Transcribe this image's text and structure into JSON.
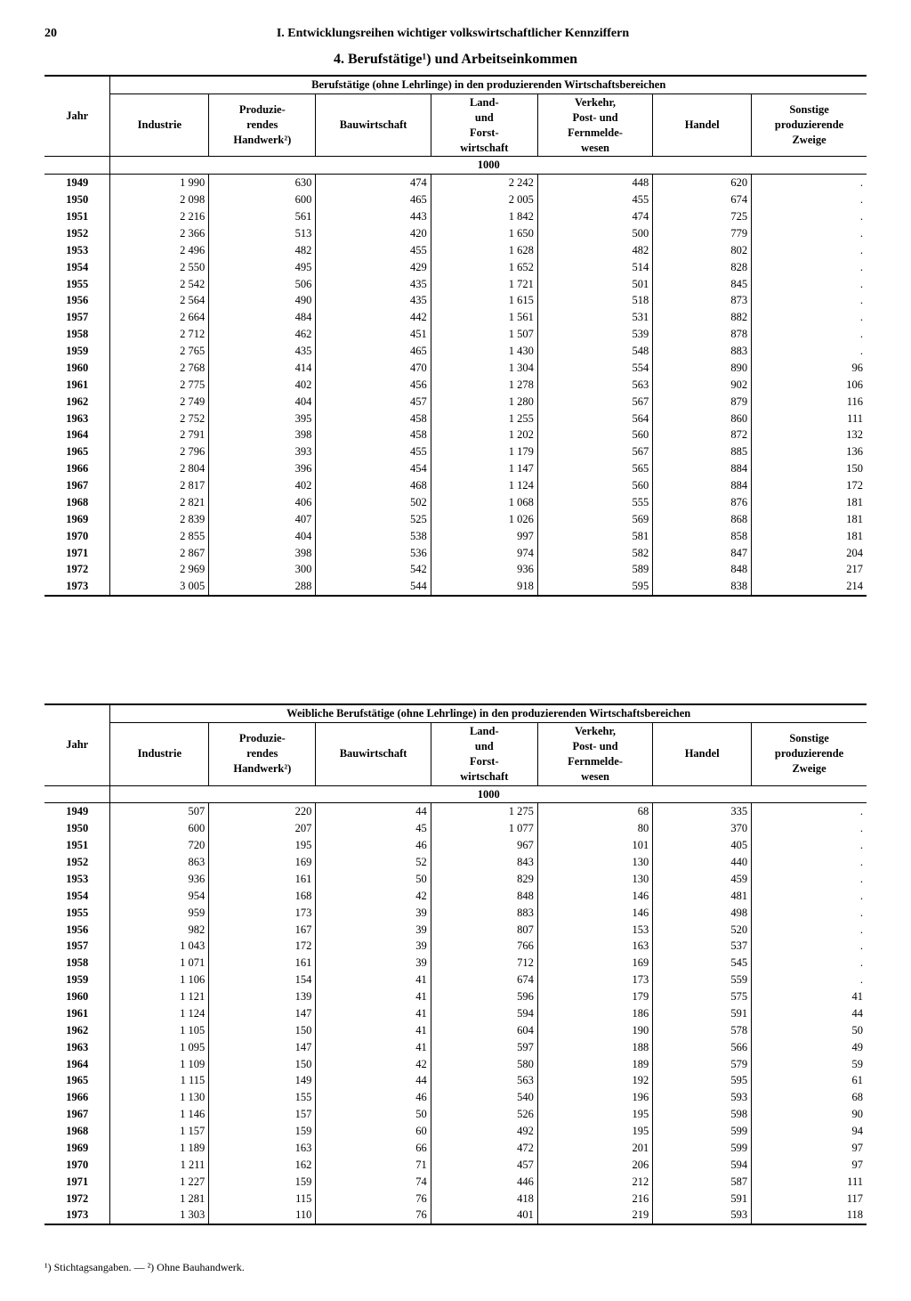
{
  "page_number": "20",
  "chapter_title": "I. Entwicklungsreihen wichtiger volkswirtschaftlicher Kennziffern",
  "section_title": "4. Berufstätige¹) und Arbeitseinkommen",
  "columns": {
    "jahr": "Jahr",
    "industrie": "Industrie",
    "handwerk": "Produzie-\nrendes\nHandwerk²)",
    "bau": "Bauwirtschaft",
    "land": "Land-\nund\nForst-\nwirtschaft",
    "verkehr": "Verkehr,\nPost- und\nFernmelde-\nwesen",
    "handel": "Handel",
    "sonstige": "Sonstige\nproduzierende\nZweige"
  },
  "unit": "1000",
  "table1": {
    "spanning_header": "Berufstätige (ohne Lehrlinge) in den produzierenden Wirtschaftsbereichen",
    "rows": [
      [
        "1949",
        "1 990",
        "630",
        "474",
        "2 242",
        "448",
        "620",
        "."
      ],
      [
        "1950",
        "2 098",
        "600",
        "465",
        "2 005",
        "455",
        "674",
        "."
      ],
      [
        "1951",
        "2 216",
        "561",
        "443",
        "1 842",
        "474",
        "725",
        "."
      ],
      [
        "1952",
        "2 366",
        "513",
        "420",
        "1 650",
        "500",
        "779",
        "."
      ],
      [
        "1953",
        "2 496",
        "482",
        "455",
        "1 628",
        "482",
        "802",
        "."
      ],
      [
        "1954",
        "2 550",
        "495",
        "429",
        "1 652",
        "514",
        "828",
        "."
      ],
      [
        "1955",
        "2 542",
        "506",
        "435",
        "1 721",
        "501",
        "845",
        "."
      ],
      [
        "1956",
        "2 564",
        "490",
        "435",
        "1 615",
        "518",
        "873",
        "."
      ],
      [
        "1957",
        "2 664",
        "484",
        "442",
        "1 561",
        "531",
        "882",
        "."
      ],
      [
        "1958",
        "2 712",
        "462",
        "451",
        "1 507",
        "539",
        "878",
        "."
      ],
      [
        "1959",
        "2 765",
        "435",
        "465",
        "1 430",
        "548",
        "883",
        "."
      ],
      [
        "1960",
        "2 768",
        "414",
        "470",
        "1 304",
        "554",
        "890",
        "96"
      ],
      [
        "1961",
        "2 775",
        "402",
        "456",
        "1 278",
        "563",
        "902",
        "106"
      ],
      [
        "1962",
        "2 749",
        "404",
        "457",
        "1 280",
        "567",
        "879",
        "116"
      ],
      [
        "1963",
        "2 752",
        "395",
        "458",
        "1 255",
        "564",
        "860",
        "111"
      ],
      [
        "1964",
        "2 791",
        "398",
        "458",
        "1 202",
        "560",
        "872",
        "132"
      ],
      [
        "1965",
        "2 796",
        "393",
        "455",
        "1 179",
        "567",
        "885",
        "136"
      ],
      [
        "1966",
        "2 804",
        "396",
        "454",
        "1 147",
        "565",
        "884",
        "150"
      ],
      [
        "1967",
        "2 817",
        "402",
        "468",
        "1 124",
        "560",
        "884",
        "172"
      ],
      [
        "1968",
        "2 821",
        "406",
        "502",
        "1 068",
        "555",
        "876",
        "181"
      ],
      [
        "1969",
        "2 839",
        "407",
        "525",
        "1 026",
        "569",
        "868",
        "181"
      ],
      [
        "1970",
        "2 855",
        "404",
        "538",
        "997",
        "581",
        "858",
        "181"
      ],
      [
        "1971",
        "2 867",
        "398",
        "536",
        "974",
        "582",
        "847",
        "204"
      ],
      [
        "1972",
        "2 969",
        "300",
        "542",
        "936",
        "589",
        "848",
        "217"
      ],
      [
        "1973",
        "3 005",
        "288",
        "544",
        "918",
        "595",
        "838",
        "214"
      ]
    ]
  },
  "table2": {
    "spanning_header": "Weibliche Berufstätige (ohne Lehrlinge) in den produzierenden Wirtschaftsbereichen",
    "rows": [
      [
        "1949",
        "507",
        "220",
        "44",
        "1 275",
        "68",
        "335",
        "."
      ],
      [
        "1950",
        "600",
        "207",
        "45",
        "1 077",
        "80",
        "370",
        "."
      ],
      [
        "1951",
        "720",
        "195",
        "46",
        "967",
        "101",
        "405",
        "."
      ],
      [
        "1952",
        "863",
        "169",
        "52",
        "843",
        "130",
        "440",
        "."
      ],
      [
        "1953",
        "936",
        "161",
        "50",
        "829",
        "130",
        "459",
        "."
      ],
      [
        "1954",
        "954",
        "168",
        "42",
        "848",
        "146",
        "481",
        "."
      ],
      [
        "1955",
        "959",
        "173",
        "39",
        "883",
        "146",
        "498",
        "."
      ],
      [
        "1956",
        "982",
        "167",
        "39",
        "807",
        "153",
        "520",
        "."
      ],
      [
        "1957",
        "1 043",
        "172",
        "39",
        "766",
        "163",
        "537",
        "."
      ],
      [
        "1958",
        "1 071",
        "161",
        "39",
        "712",
        "169",
        "545",
        "."
      ],
      [
        "1959",
        "1 106",
        "154",
        "41",
        "674",
        "173",
        "559",
        "."
      ],
      [
        "1960",
        "1 121",
        "139",
        "41",
        "596",
        "179",
        "575",
        "41"
      ],
      [
        "1961",
        "1 124",
        "147",
        "41",
        "594",
        "186",
        "591",
        "44"
      ],
      [
        "1962",
        "1 105",
        "150",
        "41",
        "604",
        "190",
        "578",
        "50"
      ],
      [
        "1963",
        "1 095",
        "147",
        "41",
        "597",
        "188",
        "566",
        "49"
      ],
      [
        "1964",
        "1 109",
        "150",
        "42",
        "580",
        "189",
        "579",
        "59"
      ],
      [
        "1965",
        "1 115",
        "149",
        "44",
        "563",
        "192",
        "595",
        "61"
      ],
      [
        "1966",
        "1 130",
        "155",
        "46",
        "540",
        "196",
        "593",
        "68"
      ],
      [
        "1967",
        "1 146",
        "157",
        "50",
        "526",
        "195",
        "598",
        "90"
      ],
      [
        "1968",
        "1 157",
        "159",
        "60",
        "492",
        "195",
        "599",
        "94"
      ],
      [
        "1969",
        "1 189",
        "163",
        "66",
        "472",
        "201",
        "599",
        "97"
      ],
      [
        "1970",
        "1 211",
        "162",
        "71",
        "457",
        "206",
        "594",
        "97"
      ],
      [
        "1971",
        "1 227",
        "159",
        "74",
        "446",
        "212",
        "587",
        "111"
      ],
      [
        "1972",
        "1 281",
        "115",
        "76",
        "418",
        "216",
        "591",
        "117"
      ],
      [
        "1973",
        "1 303",
        "110",
        "76",
        "401",
        "219",
        "593",
        "118"
      ]
    ]
  },
  "footnotes": "¹) Stichtagsangaben. — ²) Ohne Bauhandwerk."
}
